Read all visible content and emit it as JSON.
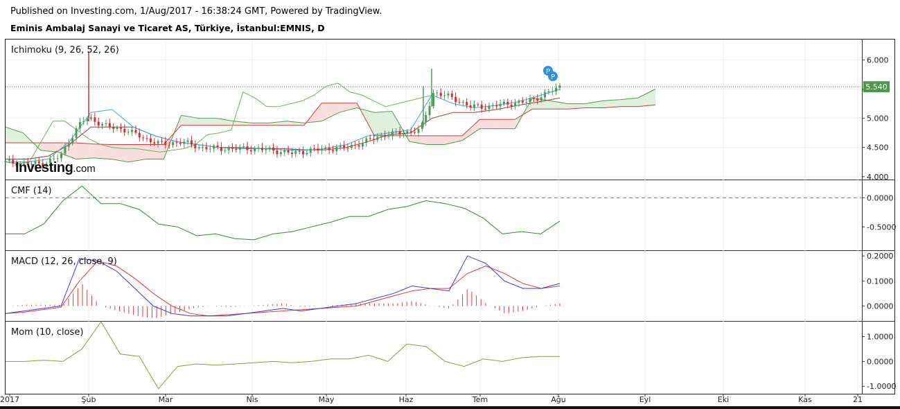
{
  "header": {
    "published": "Published on Investing.com, 1/Aug/2017 - 16:38:24 GMT, Powered by TradingView.",
    "instrument": "Eminis Ambalaj Sanayi ve Ticaret AS, Türkiye, İstanbul:EMNIS, D"
  },
  "watermark": {
    "brand": "Investing",
    "suffix": ".com"
  },
  "panes": {
    "ichimoku": {
      "label": "Ichimoku (9, 26, 52, 26)"
    },
    "cmf": {
      "label": "CMF (14)"
    },
    "macd": {
      "label": "MACD (12, 26, close, 9)"
    },
    "mom": {
      "label": "Mom (10, close)"
    }
  },
  "colors": {
    "candle_up": "#4a9a5a",
    "candle_down": "#d33030",
    "tenkan": "#3ea7e0",
    "kijun": "#a13a3a",
    "chikou": "#6cb35a",
    "span_a": "#4aa04a",
    "span_b": "#d23b3b",
    "cloud_bull": "#dff0dc",
    "cloud_bear": "#f9dede",
    "cmf": "#2e8b2e",
    "macd": "#3a3ae0",
    "signal": "#e03a3a",
    "hist": "#e03a3a",
    "mom": "#8c9a3c",
    "price_badge": "#4b9a4b"
  },
  "chart_data": [
    {
      "type": "candlestick",
      "name": "Ichimoku (9, 26, 52, 26)",
      "x_ticks": [
        "2017",
        "Şub",
        "Mar",
        "Nis",
        "May",
        "Haz",
        "Tem",
        "Ağu",
        "Eyl",
        "Eki",
        "Kas",
        "21"
      ],
      "y_ticks": [
        "6.000",
        "5.500",
        "5.000",
        "4.500",
        "4.000"
      ],
      "ylim": [
        3.95,
        6.35
      ],
      "last_price": "5.540",
      "markers": [
        "P",
        "P"
      ],
      "close_path": [
        [
          "2017-01-02",
          4.25
        ],
        [
          "2017-01-09",
          4.22
        ],
        [
          "2017-01-16",
          4.22
        ],
        [
          "2017-01-23",
          4.35
        ],
        [
          "2017-01-26",
          4.6
        ],
        [
          "2017-01-31",
          4.95
        ],
        [
          "2017-02-03",
          5.0
        ],
        [
          "2017-02-10",
          4.85
        ],
        [
          "2017-02-17",
          4.8
        ],
        [
          "2017-02-24",
          4.65
        ],
        [
          "2017-03-03",
          4.55
        ],
        [
          "2017-03-10",
          4.6
        ],
        [
          "2017-03-17",
          4.5
        ],
        [
          "2017-03-24",
          4.48
        ],
        [
          "2017-03-31",
          4.48
        ],
        [
          "2017-04-07",
          4.48
        ],
        [
          "2017-04-14",
          4.45
        ],
        [
          "2017-04-21",
          4.4
        ],
        [
          "2017-04-28",
          4.45
        ],
        [
          "2017-05-05",
          4.48
        ],
        [
          "2017-05-12",
          4.5
        ],
        [
          "2017-05-19",
          4.6
        ],
        [
          "2017-05-26",
          4.72
        ],
        [
          "2017-06-02",
          4.75
        ],
        [
          "2017-06-09",
          4.8
        ],
        [
          "2017-06-14",
          5.45
        ],
        [
          "2017-06-21",
          5.35
        ],
        [
          "2017-06-28",
          5.2
        ],
        [
          "2017-07-05",
          5.2
        ],
        [
          "2017-07-12",
          5.25
        ],
        [
          "2017-07-19",
          5.28
        ],
        [
          "2017-07-26",
          5.4
        ],
        [
          "2017-08-01",
          5.54
        ]
      ]
    },
    {
      "type": "line",
      "name": "CMF (14)",
      "y_ticks": [
        "0.0000",
        "-0.5000"
      ],
      "ylim": [
        -0.9,
        0.3
      ],
      "series": [
        {
          "values": [
            -0.62,
            -0.62,
            -0.45,
            -0.05,
            0.2,
            -0.1,
            -0.1,
            -0.2,
            -0.45,
            -0.5,
            -0.65,
            -0.62,
            -0.7,
            -0.72,
            -0.62,
            -0.58,
            -0.5,
            -0.42,
            -0.32,
            -0.32,
            -0.2,
            -0.15,
            -0.05,
            -0.1,
            -0.18,
            -0.35,
            -0.62,
            -0.58,
            -0.62,
            -0.4
          ]
        }
      ]
    },
    {
      "type": "line",
      "name": "MACD (12, 26, close, 9)",
      "y_ticks": [
        "0.2000",
        "0.1000",
        "0.0000"
      ],
      "ylim": [
        -0.06,
        0.22
      ],
      "series": [
        {
          "values": [
            -0.03,
            -0.02,
            -0.01,
            0.0,
            0.19,
            0.18,
            0.14,
            0.07,
            0.0,
            -0.03,
            -0.04,
            -0.04,
            -0.04,
            -0.03,
            -0.02,
            -0.01,
            -0.02,
            -0.01,
            0.0,
            0.01,
            0.03,
            0.05,
            0.08,
            0.07,
            0.06,
            0.2,
            0.17,
            0.1,
            0.07,
            0.07,
            0.09
          ]
        },
        {
          "values": [
            -0.03,
            -0.025,
            -0.015,
            -0.005,
            0.1,
            0.18,
            0.16,
            0.11,
            0.05,
            0.0,
            -0.03,
            -0.04,
            -0.035,
            -0.03,
            -0.025,
            -0.02,
            -0.015,
            -0.01,
            -0.005,
            0.0,
            0.02,
            0.04,
            0.06,
            0.07,
            0.07,
            0.13,
            0.16,
            0.13,
            0.09,
            0.07,
            0.08
          ]
        }
      ]
    },
    {
      "type": "line",
      "name": "Mom (10, close)",
      "y_ticks": [
        "1.0000",
        "0.0000",
        "-1.0000"
      ],
      "ylim": [
        -1.3,
        1.6
      ],
      "series": [
        {
          "values": [
            0.0,
            0.0,
            0.05,
            0.0,
            0.5,
            1.6,
            0.3,
            0.2,
            -1.1,
            -0.2,
            -0.1,
            -0.15,
            -0.1,
            -0.05,
            0.0,
            -0.05,
            0.0,
            0.1,
            0.1,
            0.25,
            0.0,
            0.7,
            0.6,
            0.0,
            -0.2,
            0.1,
            0.0,
            0.15,
            0.2,
            0.2
          ]
        }
      ]
    }
  ]
}
